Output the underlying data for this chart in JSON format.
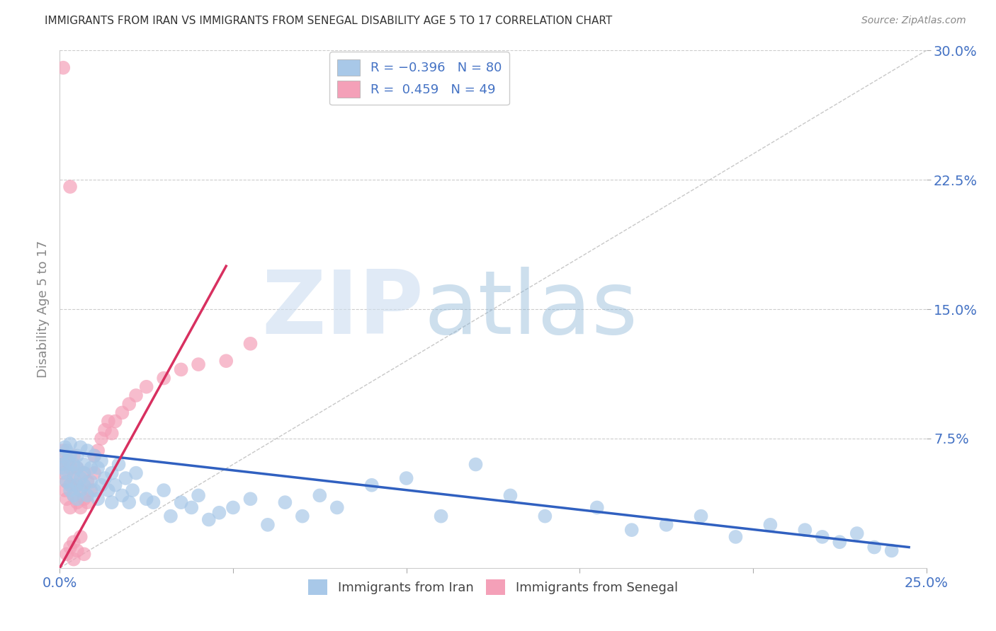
{
  "title": "IMMIGRANTS FROM IRAN VS IMMIGRANTS FROM SENEGAL DISABILITY AGE 5 TO 17 CORRELATION CHART",
  "source": "Source: ZipAtlas.com",
  "ylabel": "Disability Age 5 to 17",
  "xlim": [
    0.0,
    0.25
  ],
  "ylim": [
    0.0,
    0.3
  ],
  "iran_color": "#a8c8e8",
  "senegal_color": "#f4a0b8",
  "iran_line_color": "#3060c0",
  "senegal_line_color": "#d83060",
  "background_color": "#ffffff",
  "grid_color": "#cccccc",
  "title_color": "#333333",
  "axis_label_color": "#4472c4",
  "iran_scatter_x": [
    0.0005,
    0.001,
    0.001,
    0.0015,
    0.002,
    0.002,
    0.002,
    0.0025,
    0.003,
    0.003,
    0.003,
    0.003,
    0.004,
    0.004,
    0.004,
    0.005,
    0.005,
    0.005,
    0.005,
    0.006,
    0.006,
    0.006,
    0.007,
    0.007,
    0.007,
    0.008,
    0.008,
    0.009,
    0.009,
    0.01,
    0.01,
    0.011,
    0.011,
    0.012,
    0.012,
    0.013,
    0.014,
    0.015,
    0.015,
    0.016,
    0.017,
    0.018,
    0.019,
    0.02,
    0.021,
    0.022,
    0.025,
    0.027,
    0.03,
    0.032,
    0.035,
    0.038,
    0.04,
    0.043,
    0.046,
    0.05,
    0.055,
    0.06,
    0.065,
    0.07,
    0.075,
    0.08,
    0.09,
    0.1,
    0.11,
    0.12,
    0.13,
    0.14,
    0.155,
    0.165,
    0.175,
    0.185,
    0.195,
    0.205,
    0.215,
    0.22,
    0.225,
    0.23,
    0.235,
    0.24
  ],
  "iran_scatter_y": [
    0.065,
    0.06,
    0.058,
    0.07,
    0.055,
    0.068,
    0.05,
    0.062,
    0.048,
    0.065,
    0.045,
    0.072,
    0.055,
    0.06,
    0.042,
    0.058,
    0.048,
    0.065,
    0.04,
    0.052,
    0.07,
    0.045,
    0.06,
    0.048,
    0.055,
    0.042,
    0.068,
    0.058,
    0.05,
    0.065,
    0.045,
    0.058,
    0.04,
    0.048,
    0.062,
    0.052,
    0.045,
    0.055,
    0.038,
    0.048,
    0.06,
    0.042,
    0.052,
    0.038,
    0.045,
    0.055,
    0.04,
    0.038,
    0.045,
    0.03,
    0.038,
    0.035,
    0.042,
    0.028,
    0.032,
    0.035,
    0.04,
    0.025,
    0.038,
    0.03,
    0.042,
    0.035,
    0.048,
    0.052,
    0.03,
    0.06,
    0.042,
    0.03,
    0.035,
    0.022,
    0.025,
    0.03,
    0.018,
    0.025,
    0.022,
    0.018,
    0.015,
    0.02,
    0.012,
    0.01
  ],
  "senegal_scatter_x": [
    0.0005,
    0.001,
    0.001,
    0.0015,
    0.002,
    0.002,
    0.002,
    0.003,
    0.003,
    0.003,
    0.004,
    0.004,
    0.004,
    0.005,
    0.005,
    0.005,
    0.006,
    0.006,
    0.007,
    0.007,
    0.008,
    0.008,
    0.009,
    0.01,
    0.01,
    0.011,
    0.012,
    0.013,
    0.014,
    0.015,
    0.016,
    0.018,
    0.02,
    0.022,
    0.025,
    0.03,
    0.035,
    0.04,
    0.048,
    0.055,
    0.002,
    0.003,
    0.004,
    0.004,
    0.005,
    0.006,
    0.007,
    0.003,
    0.001
  ],
  "senegal_scatter_y": [
    0.06,
    0.055,
    0.068,
    0.045,
    0.05,
    0.062,
    0.04,
    0.058,
    0.048,
    0.035,
    0.052,
    0.065,
    0.042,
    0.048,
    0.038,
    0.058,
    0.045,
    0.035,
    0.055,
    0.04,
    0.05,
    0.038,
    0.045,
    0.065,
    0.055,
    0.068,
    0.075,
    0.08,
    0.085,
    0.078,
    0.085,
    0.09,
    0.095,
    0.1,
    0.105,
    0.11,
    0.115,
    0.118,
    0.12,
    0.13,
    0.008,
    0.012,
    0.015,
    0.005,
    0.01,
    0.018,
    0.008,
    0.221,
    0.29
  ],
  "iran_line_x0": 0.0,
  "iran_line_y0": 0.068,
  "iran_line_x1": 0.245,
  "iran_line_y1": 0.012,
  "senegal_line_x0": 0.0,
  "senegal_line_y0": 0.0,
  "senegal_line_x1": 0.048,
  "senegal_line_y1": 0.175
}
